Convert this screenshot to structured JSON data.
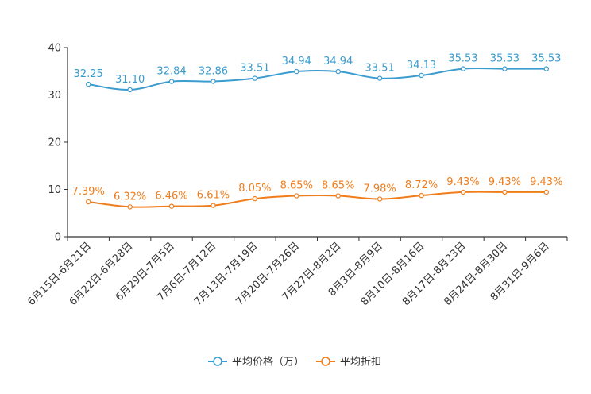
{
  "chart_data": {
    "type": "line",
    "title": "",
    "xlabel": "",
    "ylabel": "",
    "ylim": [
      0,
      40
    ],
    "yticks": [
      0,
      10,
      20,
      30,
      40
    ],
    "grid": false,
    "legend_position": "bottom-center",
    "categories": [
      "6月15日-6月21日",
      "6月22日-6月28日",
      "6月29日-7月5日",
      "7月6日-7月12日",
      "7月13日-7月19日",
      "7月20日-7月26日",
      "7月27日-8月2日",
      "8月3日-8月9日",
      "8月10日-8月16日",
      "8月17日-8月23日",
      "8月24日-8月30日",
      "8月31日-9月6日"
    ],
    "series": [
      {
        "name": "平均价格（万）",
        "color": "#3a9ccf",
        "values": [
          32.25,
          31.1,
          32.84,
          32.86,
          33.51,
          34.94,
          34.94,
          33.51,
          34.13,
          35.53,
          35.53,
          35.53
        ],
        "labels": [
          "32.25",
          "31.10",
          "32.84",
          "32.86",
          "33.51",
          "34.94",
          "34.94",
          "33.51",
          "34.13",
          "35.53",
          "35.53",
          "35.53"
        ]
      },
      {
        "name": "平均折扣",
        "color": "#f07d1a",
        "values": [
          7.39,
          6.32,
          6.46,
          6.61,
          8.05,
          8.65,
          8.65,
          7.98,
          8.72,
          9.43,
          9.43,
          9.43
        ],
        "labels": [
          "7.39%",
          "6.32%",
          "6.46%",
          "6.61%",
          "8.05%",
          "8.65%",
          "8.65%",
          "7.98%",
          "8.72%",
          "9.43%",
          "9.43%",
          "9.43%"
        ]
      }
    ]
  }
}
